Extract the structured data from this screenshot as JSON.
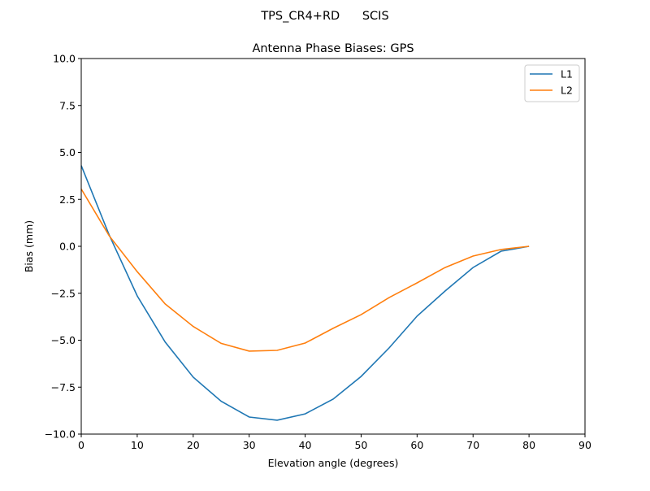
{
  "chart_data": {
    "type": "line",
    "suptitle": "TPS_CR4+RD      SCIS",
    "title": "Antenna Phase Biases: GPS",
    "xlabel": "Elevation angle (degrees)",
    "ylabel": "Bias (mm)",
    "xlim": [
      0,
      90
    ],
    "ylim": [
      -10,
      10
    ],
    "xticks": [
      0,
      10,
      20,
      30,
      40,
      50,
      60,
      70,
      80,
      90
    ],
    "xtick_labels": [
      "0",
      "10",
      "20",
      "30",
      "40",
      "50",
      "60",
      "70",
      "80",
      "90"
    ],
    "yticks": [
      -10,
      -7.5,
      -5,
      -2.5,
      0,
      2.5,
      5,
      7.5,
      10
    ],
    "ytick_labels": [
      "−10.0",
      "−7.5",
      "−5.0",
      "−2.5",
      "0.0",
      "2.5",
      "5.0",
      "7.5",
      "10.0"
    ],
    "grid": false,
    "legend_position": "top-right",
    "x": [
      0,
      5,
      10,
      15,
      20,
      25,
      30,
      35,
      40,
      45,
      50,
      55,
      60,
      65,
      70,
      75,
      80
    ],
    "series": [
      {
        "name": "L1",
        "color": "#1f77b4",
        "values": [
          4.3,
          0.6,
          -2.64,
          -5.1,
          -6.97,
          -8.25,
          -9.09,
          -9.26,
          -8.92,
          -8.14,
          -6.93,
          -5.41,
          -3.72,
          -2.38,
          -1.13,
          -0.26,
          0.0
        ]
      },
      {
        "name": "L2",
        "color": "#ff7f0e",
        "values": [
          3.05,
          0.56,
          -1.35,
          -3.07,
          -4.27,
          -5.17,
          -5.58,
          -5.54,
          -5.15,
          -4.37,
          -3.64,
          -2.73,
          -1.95,
          -1.13,
          -0.52,
          -0.17,
          0.0
        ]
      }
    ]
  }
}
